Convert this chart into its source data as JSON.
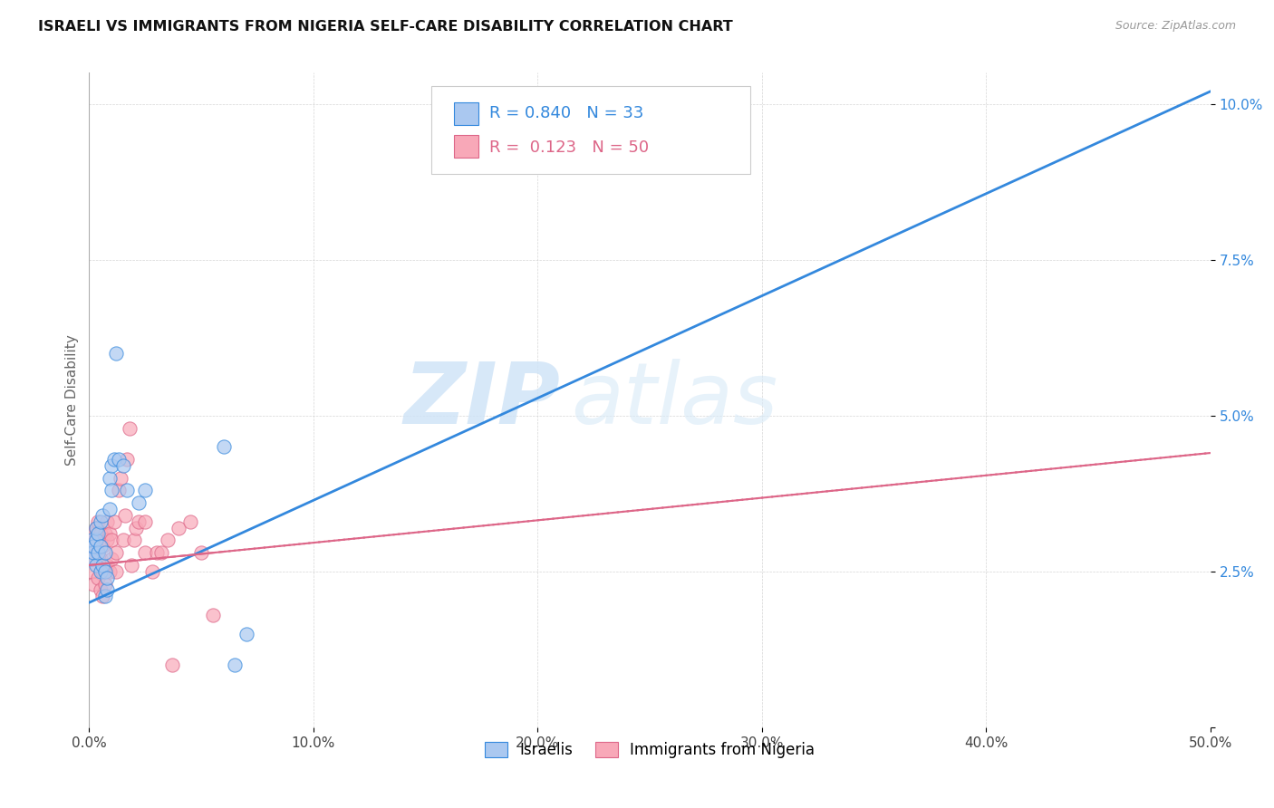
{
  "title": "ISRAELI VS IMMIGRANTS FROM NIGERIA SELF-CARE DISABILITY CORRELATION CHART",
  "source": "Source: ZipAtlas.com",
  "ylabel": "Self-Care Disability",
  "xlim": [
    0,
    0.5
  ],
  "ylim": [
    0,
    0.105
  ],
  "xticks": [
    0.0,
    0.1,
    0.2,
    0.3,
    0.4,
    0.5
  ],
  "yticks": [
    0.0,
    0.025,
    0.05,
    0.075,
    0.1
  ],
  "xtick_labels": [
    "0.0%",
    "10.0%",
    "20.0%",
    "30.0%",
    "40.0%",
    "50.0%"
  ],
  "ytick_labels": [
    "",
    "2.5%",
    "5.0%",
    "7.5%",
    "10.0%"
  ],
  "legend_label1": "Israelis",
  "legend_label2": "Immigrants from Nigeria",
  "R1": 0.84,
  "N1": 33,
  "R2": 0.123,
  "N2": 50,
  "color1": "#aac8f0",
  "color2": "#f8a8b8",
  "line_color1": "#3388dd",
  "line_color2": "#dd6688",
  "background_color": "#ffffff",
  "watermark_zip": "ZIP",
  "watermark_atlas": "atlas",
  "israelis_x": [
    0.001,
    0.001,
    0.002,
    0.002,
    0.003,
    0.003,
    0.003,
    0.004,
    0.004,
    0.005,
    0.005,
    0.005,
    0.006,
    0.006,
    0.007,
    0.007,
    0.007,
    0.008,
    0.008,
    0.009,
    0.009,
    0.01,
    0.01,
    0.011,
    0.012,
    0.013,
    0.015,
    0.017,
    0.022,
    0.025,
    0.06,
    0.065,
    0.07
  ],
  "israelis_y": [
    0.027,
    0.03,
    0.028,
    0.029,
    0.026,
    0.03,
    0.032,
    0.028,
    0.031,
    0.025,
    0.029,
    0.033,
    0.026,
    0.034,
    0.025,
    0.028,
    0.021,
    0.022,
    0.024,
    0.035,
    0.04,
    0.042,
    0.038,
    0.043,
    0.06,
    0.043,
    0.042,
    0.038,
    0.036,
    0.038,
    0.045,
    0.01,
    0.015
  ],
  "nigeria_x": [
    0.001,
    0.001,
    0.002,
    0.002,
    0.002,
    0.003,
    0.003,
    0.003,
    0.004,
    0.004,
    0.004,
    0.005,
    0.005,
    0.005,
    0.006,
    0.006,
    0.006,
    0.007,
    0.007,
    0.008,
    0.008,
    0.008,
    0.009,
    0.009,
    0.01,
    0.01,
    0.011,
    0.012,
    0.012,
    0.013,
    0.014,
    0.015,
    0.016,
    0.017,
    0.018,
    0.019,
    0.02,
    0.021,
    0.022,
    0.025,
    0.025,
    0.028,
    0.03,
    0.032,
    0.035,
    0.037,
    0.04,
    0.045,
    0.05,
    0.055
  ],
  "nigeria_y": [
    0.025,
    0.027,
    0.023,
    0.03,
    0.031,
    0.028,
    0.03,
    0.032,
    0.024,
    0.028,
    0.033,
    0.022,
    0.027,
    0.031,
    0.021,
    0.025,
    0.029,
    0.023,
    0.031,
    0.026,
    0.03,
    0.033,
    0.025,
    0.031,
    0.027,
    0.03,
    0.033,
    0.025,
    0.028,
    0.038,
    0.04,
    0.03,
    0.034,
    0.043,
    0.048,
    0.026,
    0.03,
    0.032,
    0.033,
    0.028,
    0.033,
    0.025,
    0.028,
    0.028,
    0.03,
    0.01,
    0.032,
    0.033,
    0.028,
    0.018
  ],
  "line1_x0": 0.0,
  "line1_y0": 0.02,
  "line1_x1": 0.5,
  "line1_y1": 0.102,
  "line2_x0": 0.0,
  "line2_y0": 0.026,
  "line2_x1": 0.5,
  "line2_y1": 0.044
}
